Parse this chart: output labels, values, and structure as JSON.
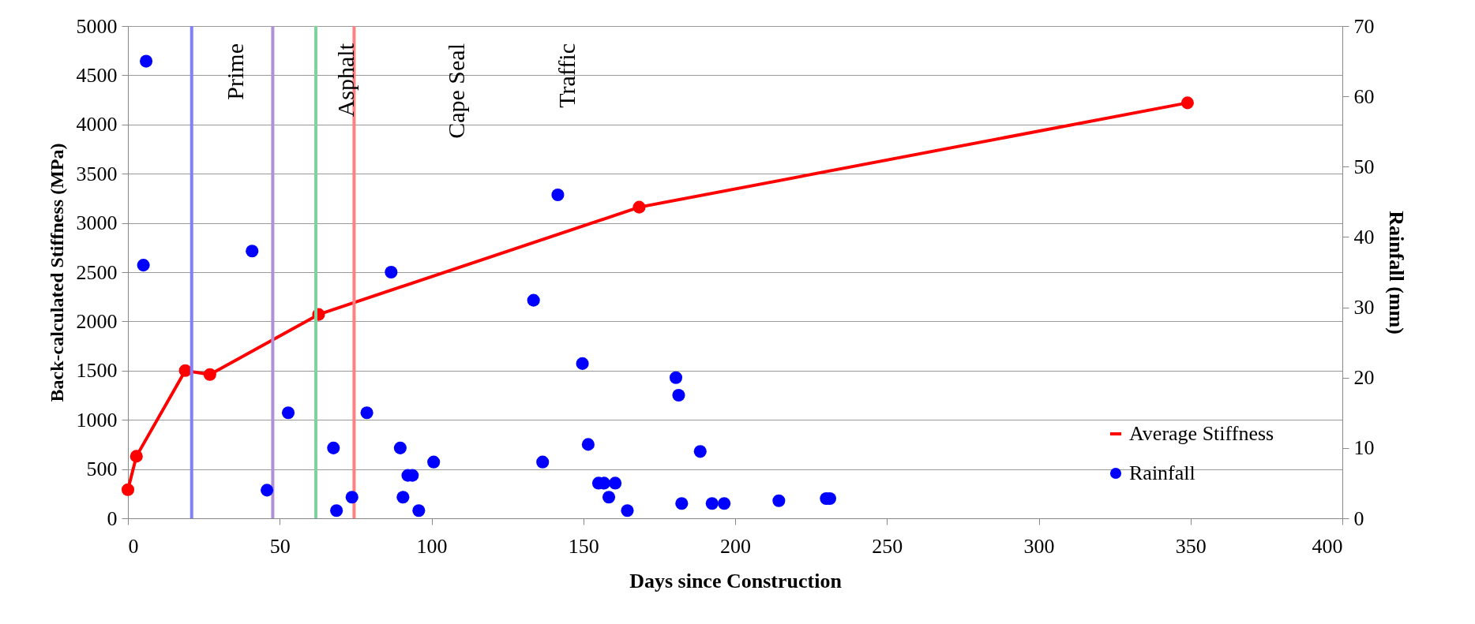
{
  "chart_data": {
    "type": "line",
    "xlabel": "Days since  Construction",
    "ylabel": "Back-calculated Stiffness (MPa)",
    "y2label": "Rainfall (mm)",
    "xlim": [
      0,
      400
    ],
    "xticks": [
      0,
      50,
      100,
      150,
      200,
      250,
      300,
      350,
      400
    ],
    "ylim": [
      0,
      5000
    ],
    "yticks": [
      0,
      500,
      1000,
      1500,
      2000,
      2500,
      3000,
      3500,
      4000,
      4500,
      5000
    ],
    "y2lim": [
      0,
      70
    ],
    "y2ticks": [
      0,
      10,
      20,
      30,
      40,
      50,
      60,
      70
    ],
    "grid": "y",
    "legend": "bottom right",
    "marker": "circle",
    "line_style": "solid",
    "series": [
      {
        "name": "Average Stiffness",
        "color": "#ff0000",
        "x": [
          0,
          2.8,
          18.9,
          27.0,
          62.8,
          168.4,
          349
        ],
        "values": [
          290,
          630,
          1500,
          1460,
          2070,
          3160,
          4220
        ]
      },
      {
        "name": "Rainfall",
        "type": "scatter",
        "axis": "y2",
        "color": "#0000ff",
        "x": [
          6.0,
          5.1,
          40.9,
          45.8,
          52.8,
          67.7,
          68.7,
          73.8,
          78.7,
          86.7,
          89.7,
          90.6,
          92.2,
          93.7,
          95.8,
          100.7,
          133.6,
          136.6,
          141.6,
          149.7,
          151.6,
          155.0,
          156.8,
          158.4,
          160.5,
          164.5,
          180.5,
          181.4,
          182.4,
          188.5,
          192.4,
          196.4,
          214.4,
          230.0,
          231.2
        ],
        "values": [
          65,
          36,
          38,
          4,
          15,
          10,
          1.1,
          3,
          15,
          35,
          10,
          3,
          6.1,
          6.1,
          1.1,
          8,
          31,
          8,
          46,
          22,
          10.5,
          5,
          5,
          3,
          5,
          1.1,
          20,
          17.5,
          2.1,
          9.5,
          2.1,
          2.1,
          2.5,
          2.8,
          2.8
        ]
      }
    ],
    "ref_lines": [
      {
        "axis": "x",
        "value": 21.0,
        "color": "#7f7fff"
      },
      {
        "axis": "x",
        "value": 47.7,
        "color": "#b091d8"
      },
      {
        "axis": "x",
        "value": 61.9,
        "color": "#7fd3a0"
      },
      {
        "axis": "x",
        "value": 74.5,
        "color": "#ff8080"
      }
    ],
    "annotations": [
      "Prime",
      "Asphalt",
      "Cape Seal",
      "Traffic"
    ]
  }
}
